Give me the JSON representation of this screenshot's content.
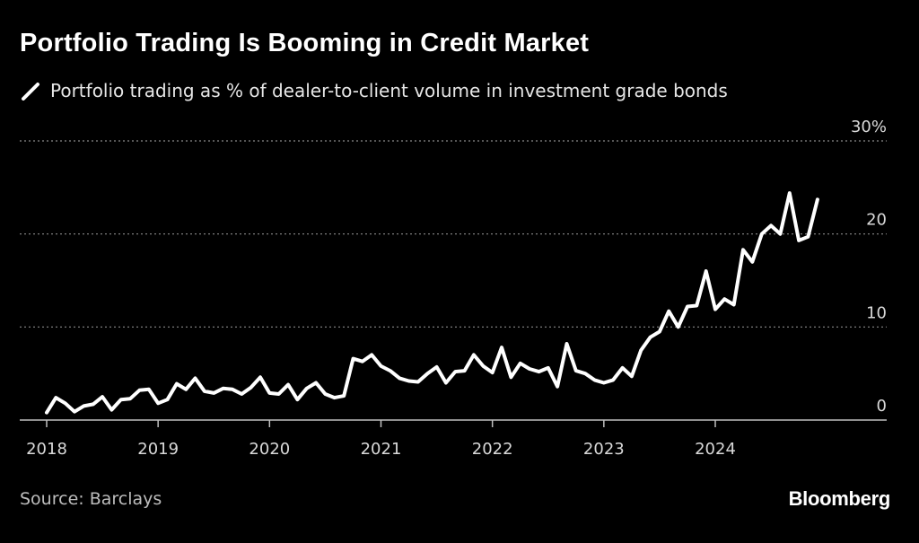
{
  "title": "Portfolio Trading Is Booming in Credit Market",
  "source": "Source: Barclays",
  "brand": "Bloomberg",
  "chart_data": {
    "type": "line",
    "title": "Portfolio Trading Is Booming in Credit Market",
    "xlabel": "",
    "ylabel": "",
    "xlim": [
      2018,
      2025.5
    ],
    "ylim": [
      0,
      30
    ],
    "x_ticks": [
      2018,
      2019,
      2020,
      2021,
      2022,
      2023,
      2024
    ],
    "x_tick_labels": [
      "2018",
      "2019",
      "2020",
      "2021",
      "2022",
      "2023",
      "2024"
    ],
    "y_ticks": [
      0,
      10,
      20,
      30
    ],
    "y_tick_labels": [
      "0",
      "10",
      "20",
      "30%"
    ],
    "grid": "horizontal dotted",
    "legend_position": "top-left",
    "line_color": "#ffffff",
    "series": [
      {
        "name": "Portfolio trading as % of dealer-to-client volume in investment grade bonds",
        "x": [
          2018.0,
          2018.083,
          2018.167,
          2018.25,
          2018.333,
          2018.417,
          2018.5,
          2018.583,
          2018.667,
          2018.75,
          2018.833,
          2018.917,
          2019.0,
          2019.083,
          2019.167,
          2019.25,
          2019.333,
          2019.417,
          2019.5,
          2019.583,
          2019.667,
          2019.75,
          2019.833,
          2019.917,
          2020.0,
          2020.083,
          2020.167,
          2020.25,
          2020.333,
          2020.417,
          2020.5,
          2020.583,
          2020.667,
          2020.75,
          2020.833,
          2020.917,
          2021.0,
          2021.083,
          2021.167,
          2021.25,
          2021.333,
          2021.417,
          2021.5,
          2021.583,
          2021.667,
          2021.75,
          2021.833,
          2021.917,
          2022.0,
          2022.083,
          2022.167,
          2022.25,
          2022.333,
          2022.417,
          2022.5,
          2022.583,
          2022.667,
          2022.75,
          2022.833,
          2022.917,
          2023.0,
          2023.083,
          2023.167,
          2023.25,
          2023.333,
          2023.417,
          2023.5,
          2023.583,
          2023.667,
          2023.75,
          2023.833,
          2023.917,
          2024.0,
          2024.083,
          2024.167,
          2024.25,
          2024.333,
          2024.417,
          2024.5,
          2024.583,
          2024.667,
          2024.75,
          2024.833,
          2024.917
        ],
        "values": [
          0.8,
          2.4,
          1.8,
          0.9,
          1.5,
          1.7,
          2.5,
          1.1,
          2.2,
          2.3,
          3.2,
          3.3,
          1.8,
          2.2,
          3.9,
          3.3,
          4.5,
          3.1,
          2.9,
          3.4,
          3.3,
          2.8,
          3.5,
          4.6,
          2.9,
          2.8,
          3.8,
          2.2,
          3.4,
          4.0,
          2.8,
          2.4,
          2.6,
          6.6,
          6.3,
          7.0,
          5.8,
          5.3,
          4.5,
          4.2,
          4.1,
          5.0,
          5.7,
          4.0,
          5.2,
          5.3,
          7.0,
          5.8,
          5.1,
          7.8,
          4.6,
          6.1,
          5.5,
          5.2,
          5.6,
          3.6,
          8.2,
          5.3,
          5.0,
          4.3,
          4.0,
          4.3,
          5.6,
          4.7,
          7.5,
          8.9,
          9.5,
          11.7,
          10.0,
          12.2,
          12.3,
          16.0,
          11.9,
          13.0,
          12.4,
          18.3,
          17.0,
          20.0,
          20.9,
          20.0,
          24.4,
          19.3,
          19.7,
          23.7
        ]
      }
    ]
  }
}
